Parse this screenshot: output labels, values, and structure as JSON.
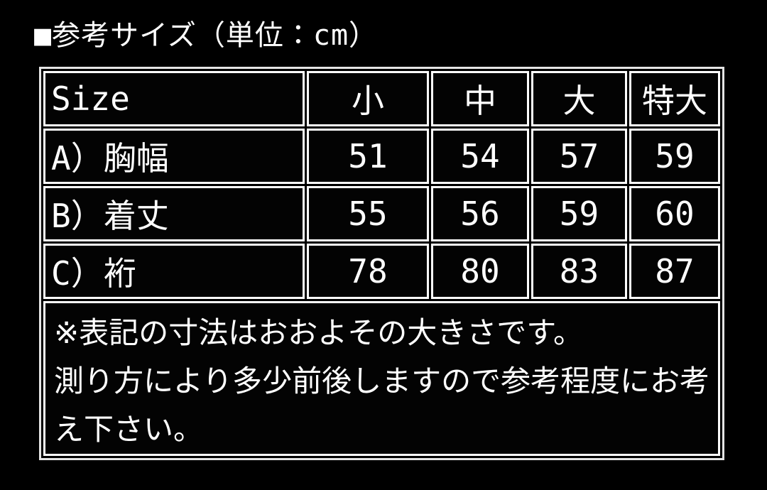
{
  "colors": {
    "background": "#000000",
    "text": "#ffffff",
    "cell_border": "#fdfdfd",
    "outer_border": "#e4e4e4"
  },
  "title": "■参考サイズ（単位：cm）",
  "table": {
    "columns": [
      "Size",
      "小",
      "中",
      "大",
      "特大"
    ],
    "rows": [
      {
        "label": "A）胸幅",
        "values": [
          "51",
          "54",
          "57",
          "59"
        ]
      },
      {
        "label": "B）着丈",
        "values": [
          "55",
          "56",
          "59",
          "60"
        ]
      },
      {
        "label": "C）裄",
        "values": [
          "78",
          "80",
          "83",
          "87"
        ]
      }
    ]
  },
  "note": {
    "lines": [
      "※表記の寸法はおおよその大きさです。",
      "測り方により多少前後しますので参考程度にお考",
      "え下さい。"
    ]
  }
}
